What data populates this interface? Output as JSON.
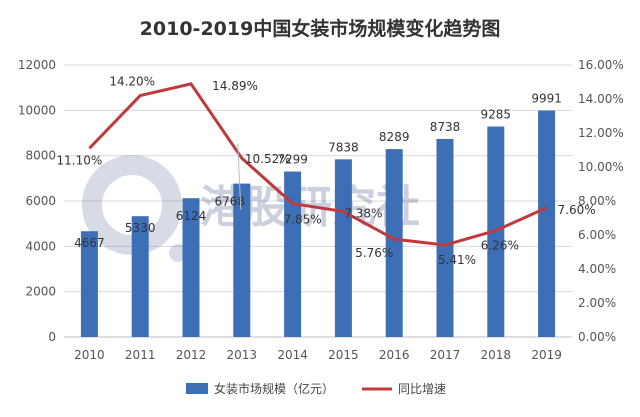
{
  "chart_data": {
    "type": "bar",
    "title": "2010-2019中国女装市场规模变化趋势图",
    "categories": [
      "2010",
      "2011",
      "2012",
      "2013",
      "2014",
      "2015",
      "2016",
      "2017",
      "2018",
      "2019"
    ],
    "series": [
      {
        "name": "女装市场规模（亿元）",
        "type": "bar",
        "axis": "left",
        "values": [
          4667,
          5330,
          6124,
          6768,
          7299,
          7838,
          8289,
          8738,
          9285,
          9991
        ],
        "labels": [
          "4667",
          "5330",
          "6124",
          "6768",
          "7299",
          "7838",
          "8289",
          "8738",
          "9285",
          "9991"
        ],
        "color": "#3d6fb6"
      },
      {
        "name": "同比增速",
        "type": "line",
        "axis": "right",
        "values": [
          11.1,
          14.2,
          14.89,
          10.52,
          7.85,
          7.38,
          5.76,
          5.41,
          6.26,
          7.6
        ],
        "labels": [
          "11.10%",
          "14.20%",
          "14.89%",
          "10.52%",
          "7.85%",
          "7.38%",
          "5.76%",
          "5.41%",
          "6.26%",
          "7.60%"
        ],
        "color": "#c0393c"
      }
    ],
    "y_left": {
      "ylim": [
        0,
        12000
      ],
      "ticks": [
        "0",
        "2000",
        "4000",
        "6000",
        "8000",
        "10000",
        "12000"
      ]
    },
    "y_right": {
      "ylim": [
        0,
        16
      ],
      "ticks": [
        "0.00%",
        "2.00%",
        "4.00%",
        "6.00%",
        "8.00%",
        "10.00%",
        "12.00%",
        "14.00%",
        "16.00%"
      ]
    },
    "grid": true,
    "legend": "bottom",
    "watermark": "港股研究社"
  }
}
